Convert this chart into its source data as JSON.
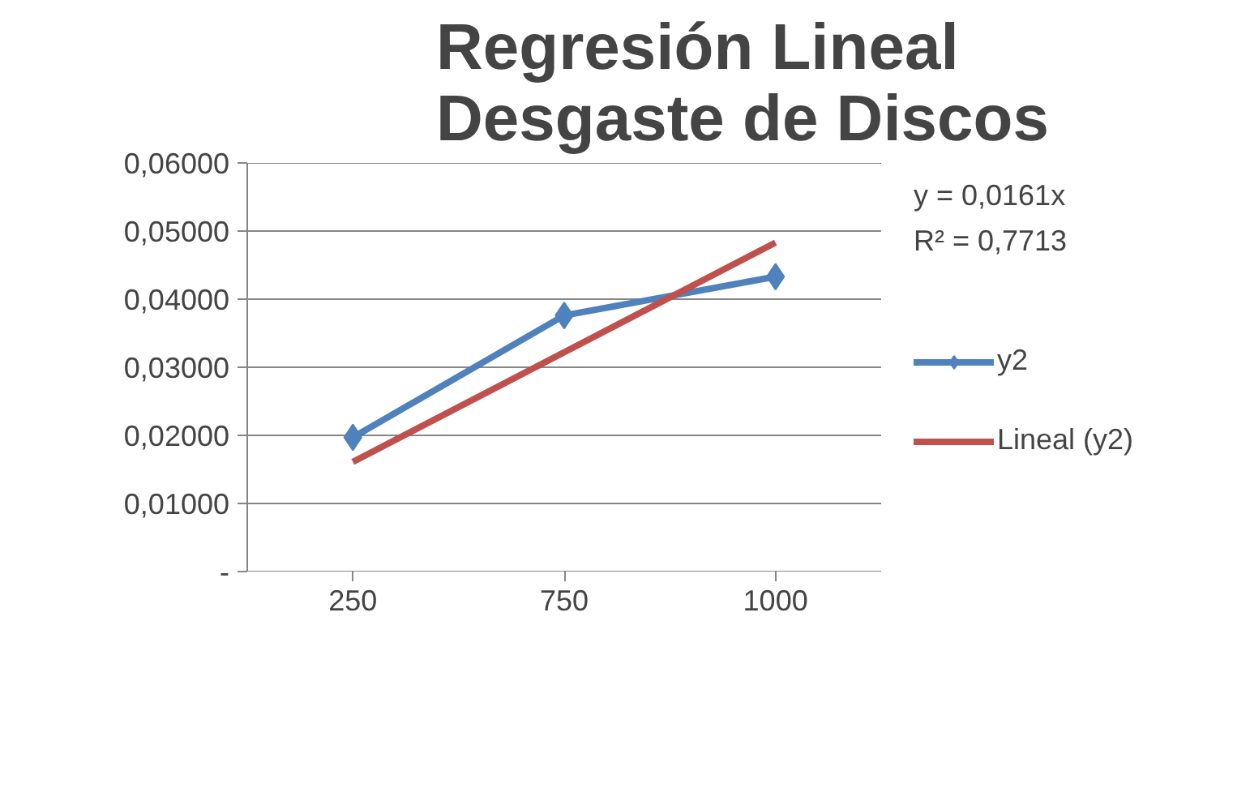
{
  "chart_data": {
    "type": "line",
    "title": "Regresión Lineal\nDesgaste de Discos",
    "categories": [
      "250",
      "750",
      "1000"
    ],
    "series": [
      {
        "name": "y2",
        "color": "#4f81bd",
        "values": [
          0.0197,
          0.0376,
          0.0433
        ],
        "marker": "diamond"
      },
      {
        "name": "Lineal (y2)",
        "color": "#c0504d",
        "values": [
          0.0161,
          0.0322,
          0.0483
        ],
        "marker": "none"
      }
    ],
    "ylim": [
      0,
      0.06
    ],
    "yticks": [
      {
        "value": 0,
        "label": "-"
      },
      {
        "value": 0.01,
        "label": "0,01000"
      },
      {
        "value": 0.02,
        "label": "0,02000"
      },
      {
        "value": 0.03,
        "label": "0,03000"
      },
      {
        "value": 0.04,
        "label": "0,04000"
      },
      {
        "value": 0.05,
        "label": "0,05000"
      },
      {
        "value": 0.06,
        "label": "0,06000"
      }
    ],
    "grid": "y",
    "legend": "right",
    "annotations": [
      "y = 0,0161x",
      "R² = 0,7713"
    ]
  }
}
